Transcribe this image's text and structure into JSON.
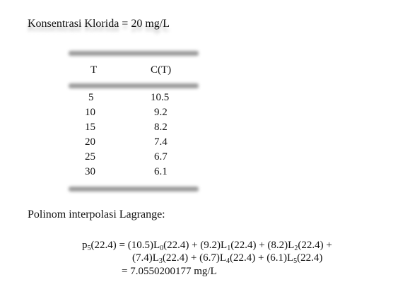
{
  "heading": "Konsentrasi Klorida = 20 mg/L",
  "table": {
    "headers": [
      "T",
      "C(T)"
    ],
    "rows": [
      {
        "t": "5",
        "c": "10.5"
      },
      {
        "t": "10",
        "c": "9.2"
      },
      {
        "t": "15",
        "c": "8.2"
      },
      {
        "t": "20",
        "c": "7.4"
      },
      {
        "t": "25",
        "c": "6.7"
      },
      {
        "t": "30",
        "c": "6.1"
      }
    ]
  },
  "subheading": "Polinom interpolasi Lagrange:",
  "equation": {
    "line1": [
      {
        "text": "p"
      },
      {
        "sub": "5"
      },
      {
        "text": "(22.4) = (10.5)L"
      },
      {
        "sub": "0"
      },
      {
        "text": "(22.4) + (9.2)L"
      },
      {
        "sub": "1"
      },
      {
        "text": "(22.4) + (8.2)L"
      },
      {
        "sub": "2"
      },
      {
        "text": "(22.4) +"
      }
    ],
    "line2": [
      {
        "text": "(7.4)L"
      },
      {
        "sub": "3"
      },
      {
        "text": "(22.4) + (6.7)L"
      },
      {
        "sub": "4"
      },
      {
        "text": "(22.4) + (6.1)L"
      },
      {
        "sub": "5"
      },
      {
        "text": "(22.4)"
      }
    ],
    "line3": [
      {
        "text": "= 7.0550200177 mg/L"
      }
    ]
  }
}
